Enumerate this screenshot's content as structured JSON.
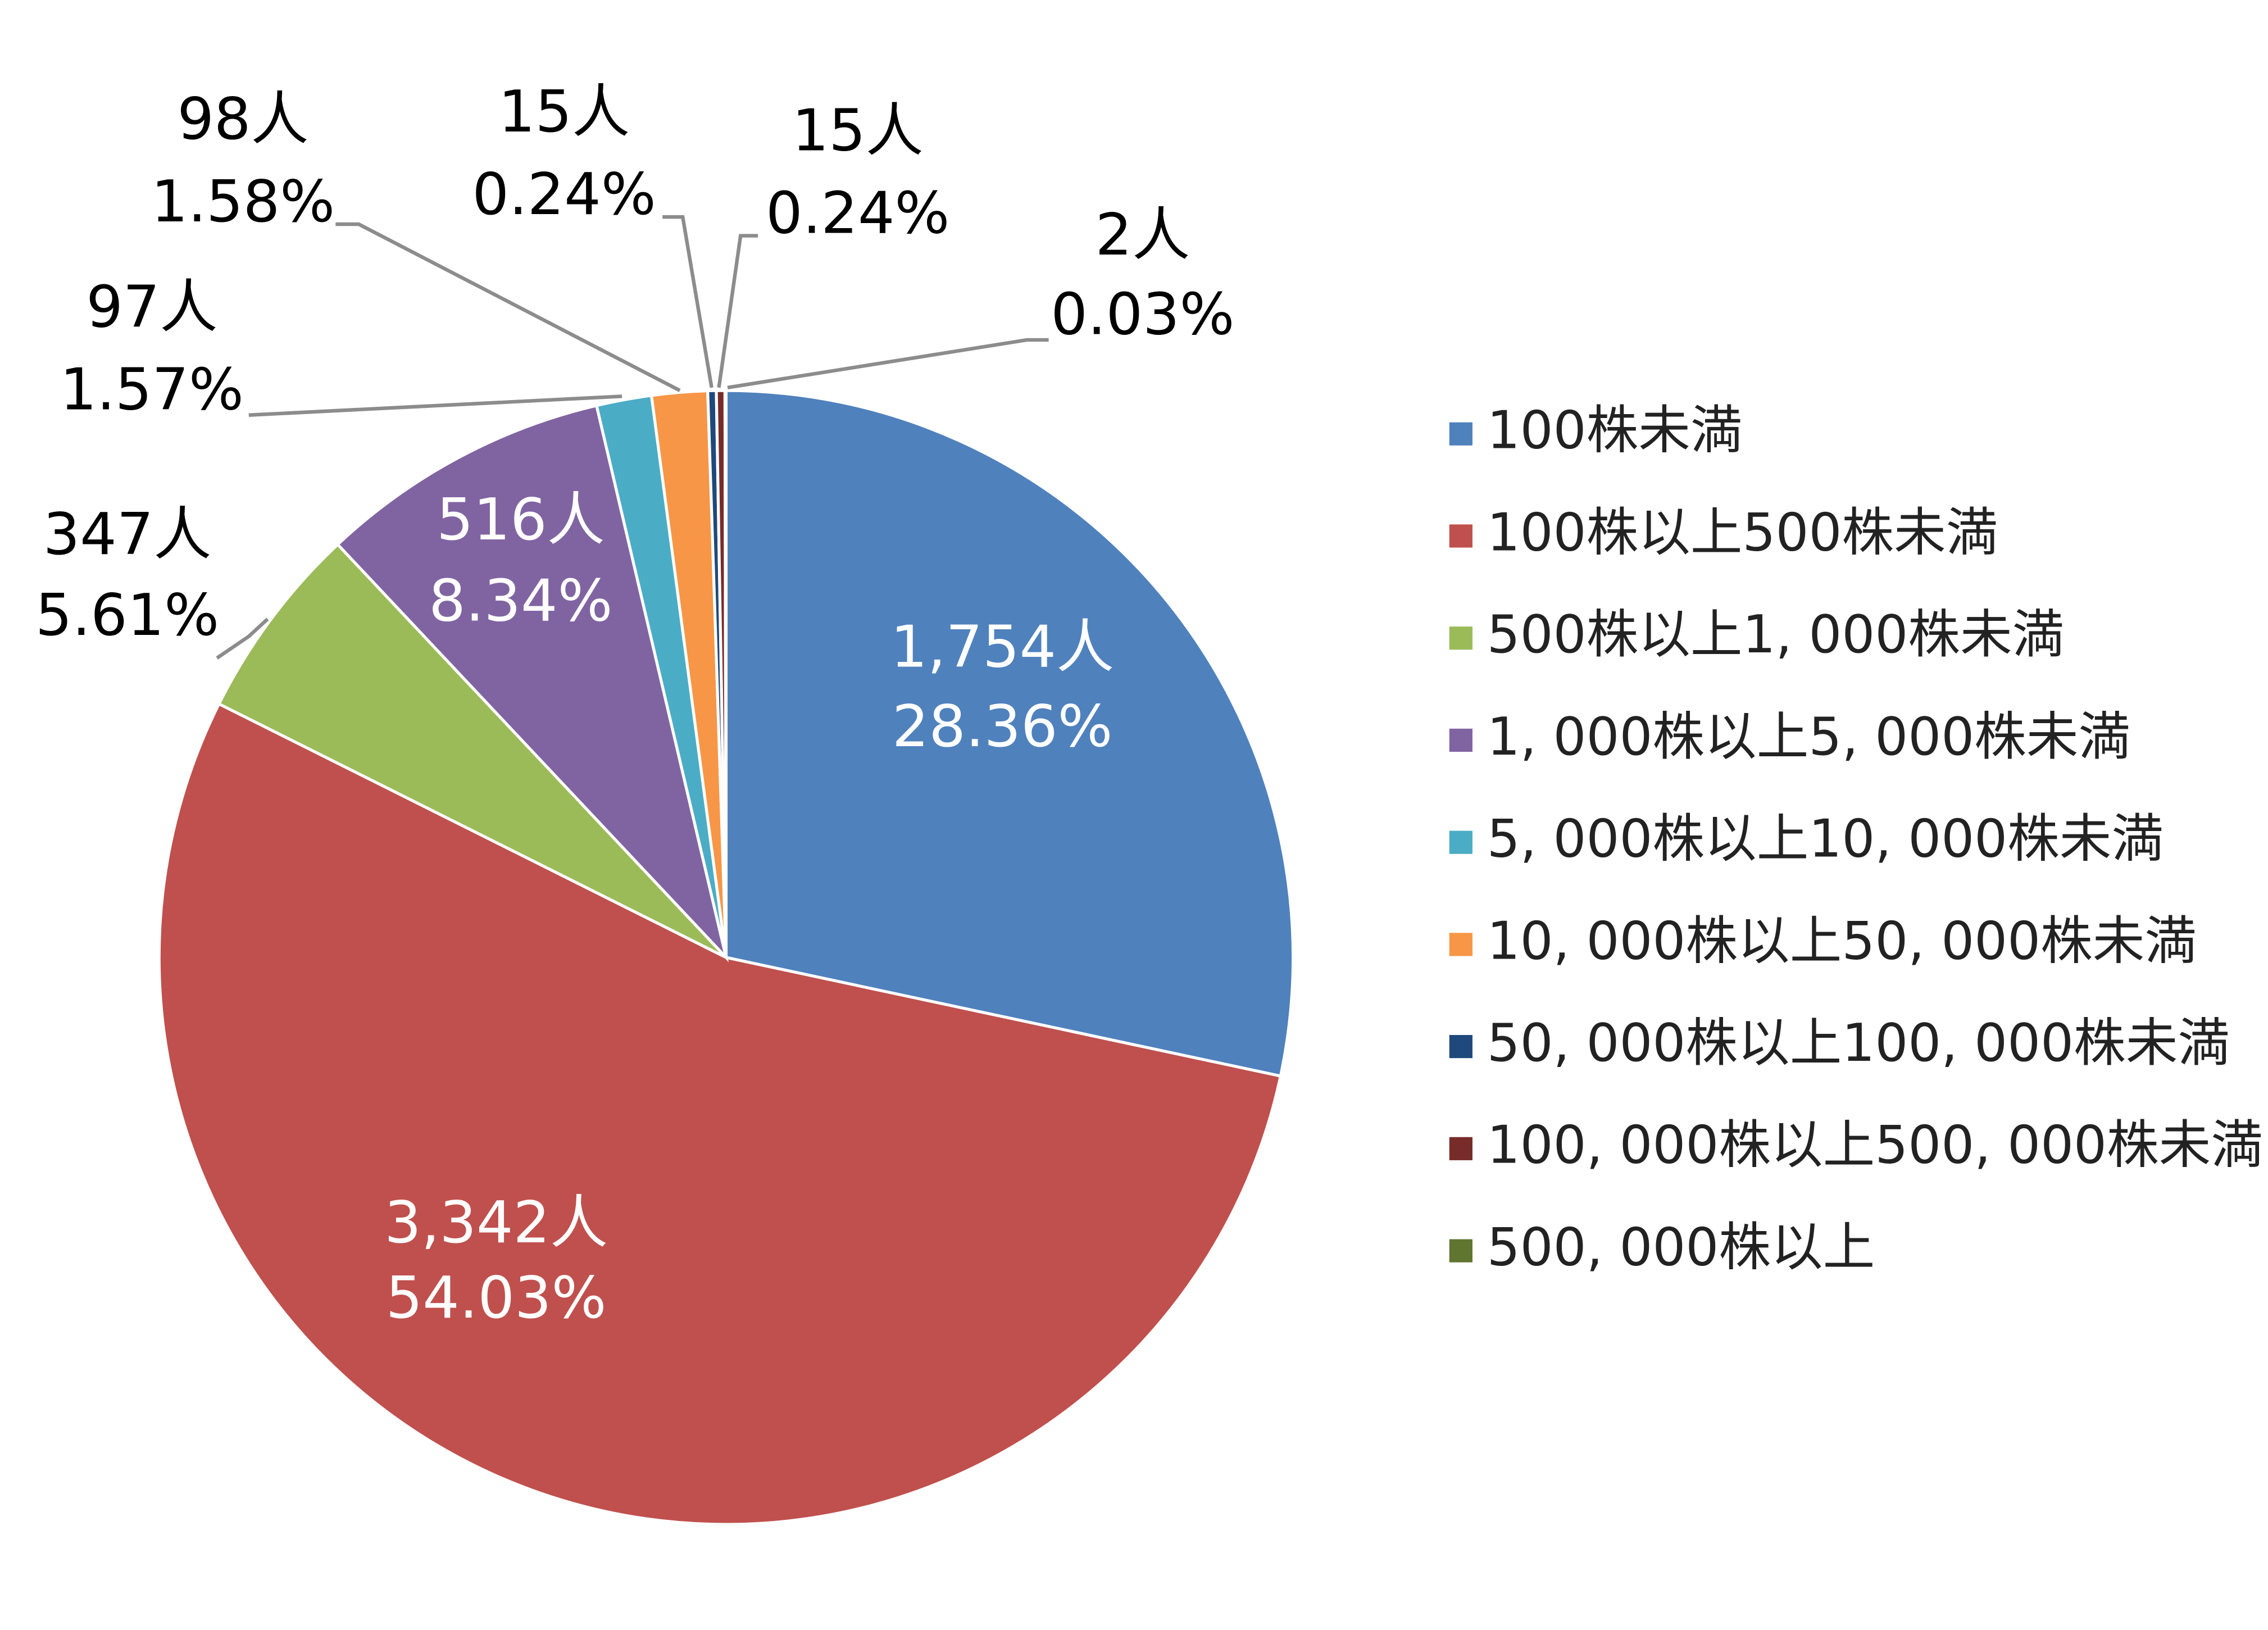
{
  "chart_data": {
    "type": "pie",
    "categories": [
      "100株未満",
      "100株以上500株未満",
      "500株以上1, 000株未満",
      "1, 000株以上5, 000株未満",
      "5, 000株以上10, 000株未満",
      "10, 000株以上50, 000株未満",
      "50, 000株以上100, 000株未満",
      "100, 000株以上500, 000株未満",
      "500, 000株以上"
    ],
    "values": [
      1754,
      3342,
      347,
      516,
      97,
      98,
      15,
      15,
      2
    ],
    "value_labels": [
      "1,754人",
      "3,342人",
      "347人",
      "516人",
      "97人",
      "98人",
      "15人",
      "15人",
      "2人"
    ],
    "percents": [
      28.36,
      54.03,
      5.61,
      8.34,
      1.57,
      1.58,
      0.24,
      0.24,
      0.03
    ],
    "percent_labels": [
      "28.36%",
      "54.03%",
      "5.61%",
      "8.34%",
      "1.57%",
      "1.58%",
      "0.24%",
      "0.24%",
      "0.03%"
    ],
    "colors": [
      "#4F81BD",
      "#C0504D",
      "#9BBB59",
      "#8064A2",
      "#4BACC6",
      "#F79646",
      "#1F497D",
      "#772C2A",
      "#5F7530"
    ],
    "legend": "right"
  }
}
